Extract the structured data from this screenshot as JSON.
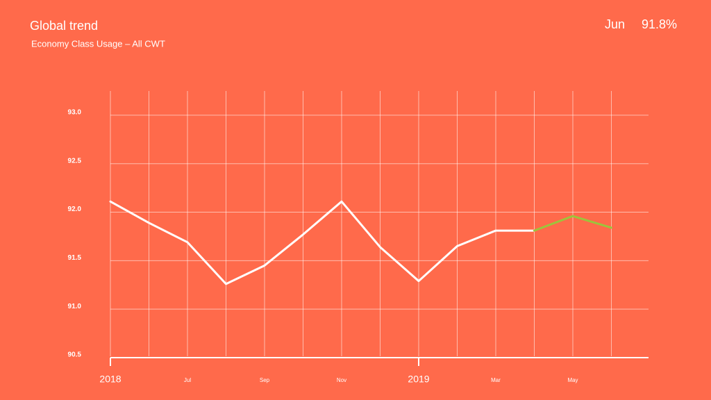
{
  "chart_data": {
    "type": "line",
    "title": "Global trend",
    "subtitle": "Economy Class Usage – All CWT",
    "highlight": {
      "label": "Jun",
      "value_label": "91.8%"
    },
    "categories": [
      "2018",
      null,
      "Jul",
      null,
      "Sep",
      null,
      "Nov",
      null,
      "2019",
      null,
      "Mar",
      null,
      "May",
      null
    ],
    "series": [
      {
        "color": "#ffffff",
        "values": [
          92.11,
          91.89,
          91.69,
          91.26,
          91.45,
          91.77,
          92.11,
          91.64,
          91.29,
          91.65,
          91.81,
          91.81,
          null,
          null
        ]
      },
      {
        "color": "#9cc43c",
        "values": [
          null,
          null,
          null,
          null,
          null,
          null,
          null,
          null,
          null,
          null,
          null,
          91.81,
          91.96,
          91.84
        ]
      }
    ],
    "ylim": [
      90.5,
      93.25
    ],
    "yticks": [
      90.5,
      {
        "value": 91.0,
        "label": "91.0"
      },
      91.5,
      {
        "value": 92.0,
        "label": "92.0"
      },
      92.5,
      {
        "value": 93.0,
        "label": "93.0"
      }
    ],
    "grid": true
  }
}
